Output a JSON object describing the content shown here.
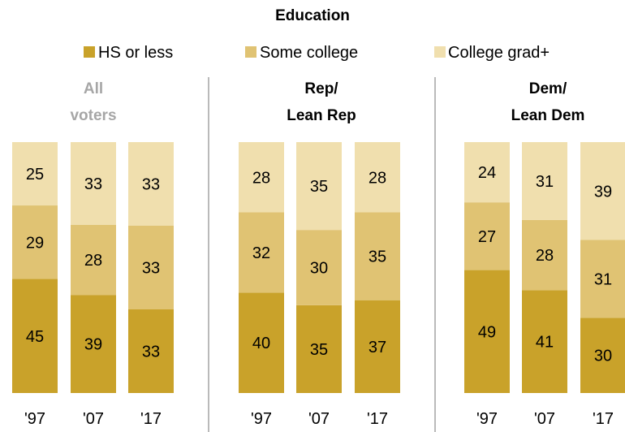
{
  "chart_data": {
    "type": "bar",
    "stacked": true,
    "title": "Education",
    "legend_position": "top",
    "series": [
      {
        "name": "HS or less",
        "color": "#C9A22A"
      },
      {
        "name": "Some college",
        "color": "#E0C373"
      },
      {
        "name": "College grad+",
        "color": "#F0DFAE"
      }
    ],
    "groups": [
      {
        "label_lines": [
          "All",
          "voters"
        ],
        "label_color": "#A6A6A6",
        "categories": [
          "'97",
          "'07",
          "'17"
        ],
        "values": [
          [
            45,
            29,
            25
          ],
          [
            39,
            28,
            33
          ],
          [
            33,
            33,
            33
          ]
        ]
      },
      {
        "label_lines": [
          "Rep/",
          "Lean Rep"
        ],
        "label_color": "#C0392B",
        "categories": [
          "'97",
          "'07",
          "'17"
        ],
        "values": [
          [
            40,
            32,
            28
          ],
          [
            35,
            30,
            35
          ],
          [
            37,
            35,
            28
          ]
        ]
      },
      {
        "label_lines": [
          "Dem/",
          "Lean Dem"
        ],
        "label_color": "#4A6E85",
        "categories": [
          "'97",
          "'07",
          "'17"
        ],
        "values": [
          [
            49,
            27,
            24
          ],
          [
            41,
            28,
            31
          ],
          [
            30,
            31,
            39
          ]
        ]
      }
    ],
    "ylim": [
      0,
      100
    ],
    "grid": false,
    "separator_color": "#8C8C8C"
  }
}
